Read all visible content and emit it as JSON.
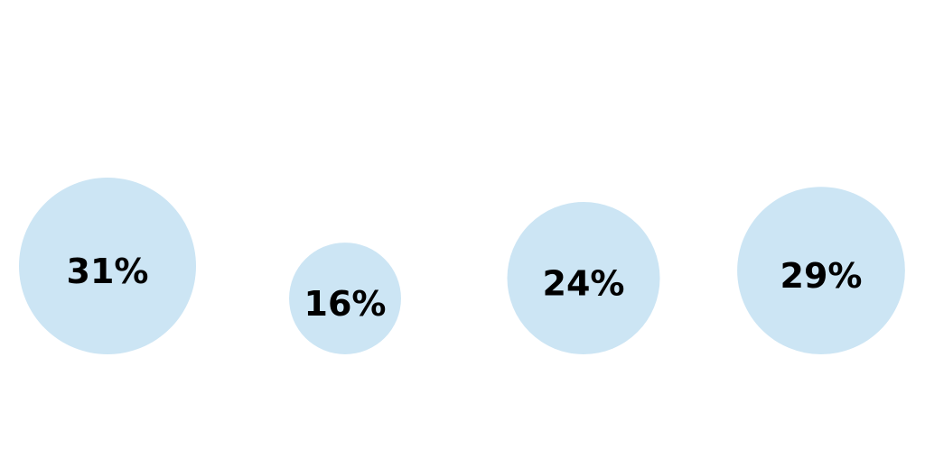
{
  "chart_data": {
    "type": "bubble",
    "title": "",
    "xlabel": "",
    "ylabel": "",
    "grid": false,
    "legend": "none",
    "bubble_color": "#cce5f4",
    "label_color": "#000000",
    "values": [
      31,
      16,
      24,
      29
    ],
    "labels": [
      "31%",
      "16%",
      "24%",
      "29%"
    ]
  }
}
